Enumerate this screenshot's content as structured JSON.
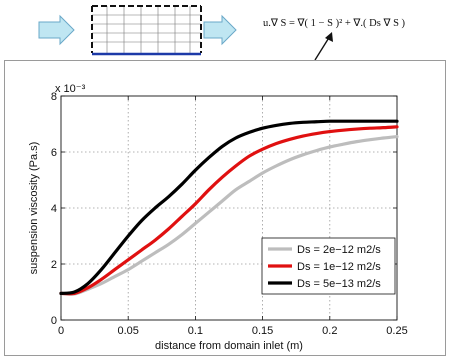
{
  "equation": "u.∇ S = ∇( 1 − S )² + ∇.( Ds ∇ S )",
  "chart_data": {
    "type": "line",
    "xlabel": "distance from domain inlet (m)",
    "ylabel": "suspension viscosity (Pa.s)",
    "y_multiplier": "x 10⁻³",
    "xlim": [
      0,
      0.25
    ],
    "ylim": [
      0,
      8
    ],
    "xticks": [
      "0",
      "0.05",
      "0.1",
      "0.15",
      "0.2",
      "0.25"
    ],
    "yticks": [
      "0",
      "2",
      "4",
      "6",
      "8"
    ],
    "grid": true,
    "legend_position": "lower-right",
    "series": [
      {
        "name": "Ds = 2e−12 m2/s",
        "color": "#bdbdbd",
        "x": [
          0,
          0.01,
          0.02,
          0.03,
          0.04,
          0.05,
          0.06,
          0.07,
          0.08,
          0.09,
          0.1,
          0.11,
          0.12,
          0.13,
          0.14,
          0.15,
          0.16,
          0.17,
          0.18,
          0.19,
          0.2,
          0.21,
          0.22,
          0.23,
          0.24,
          0.25
        ],
        "y": [
          0.95,
          0.93,
          1.1,
          1.3,
          1.55,
          1.8,
          2.1,
          2.4,
          2.7,
          3.05,
          3.45,
          3.85,
          4.25,
          4.65,
          4.95,
          5.25,
          5.5,
          5.72,
          5.9,
          6.05,
          6.18,
          6.28,
          6.37,
          6.44,
          6.5,
          6.55
        ]
      },
      {
        "name": "Ds = 1e−12 m2/s",
        "color": "#e01010",
        "x": [
          0,
          0.01,
          0.02,
          0.03,
          0.04,
          0.05,
          0.06,
          0.07,
          0.08,
          0.09,
          0.1,
          0.11,
          0.12,
          0.13,
          0.14,
          0.15,
          0.16,
          0.17,
          0.18,
          0.19,
          0.2,
          0.21,
          0.22,
          0.23,
          0.24,
          0.25
        ],
        "y": [
          0.95,
          0.95,
          1.15,
          1.45,
          1.8,
          2.15,
          2.5,
          2.85,
          3.25,
          3.7,
          4.15,
          4.65,
          5.1,
          5.5,
          5.85,
          6.1,
          6.3,
          6.45,
          6.57,
          6.66,
          6.73,
          6.78,
          6.82,
          6.85,
          6.87,
          6.9
        ]
      },
      {
        "name": "Ds = 5e−13 m2/s",
        "color": "#000000",
        "x": [
          0,
          0.01,
          0.02,
          0.03,
          0.04,
          0.05,
          0.06,
          0.07,
          0.08,
          0.09,
          0.1,
          0.11,
          0.12,
          0.13,
          0.14,
          0.15,
          0.16,
          0.17,
          0.18,
          0.19,
          0.2,
          0.21,
          0.22,
          0.23,
          0.24,
          0.25
        ],
        "y": [
          0.95,
          1.0,
          1.3,
          1.8,
          2.4,
          3.0,
          3.55,
          4.0,
          4.4,
          4.85,
          5.35,
          5.8,
          6.2,
          6.5,
          6.7,
          6.85,
          6.95,
          7.02,
          7.06,
          7.08,
          7.1,
          7.1,
          7.1,
          7.1,
          7.1,
          7.1
        ]
      }
    ]
  }
}
